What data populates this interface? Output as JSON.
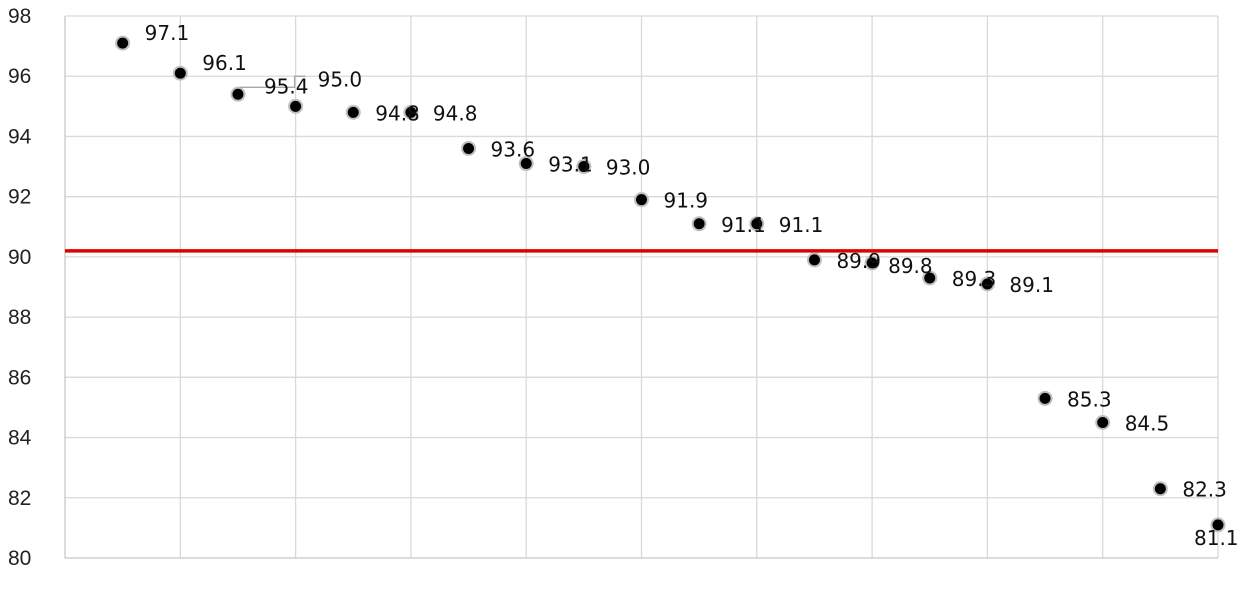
{
  "chart_data": {
    "type": "scatter",
    "title": "",
    "xlabel": "",
    "ylabel": "",
    "ylim": [
      80,
      98
    ],
    "y_ticks": [
      "80",
      "82",
      "84",
      "86",
      "88",
      "90",
      "92",
      "94",
      "96",
      "98"
    ],
    "x_range": [
      0,
      20
    ],
    "x_grid_every": 2,
    "grid": true,
    "legend": "none",
    "marker_color": "#000000",
    "marker_edge_color": "#bfbfbf",
    "reference_line": {
      "y": 90.2,
      "color": "#e00000"
    },
    "points": [
      {
        "x": 1,
        "y": 97.1,
        "label": "97.1"
      },
      {
        "x": 2,
        "y": 96.1,
        "label": "96.1"
      },
      {
        "x": 3,
        "y": 95.4,
        "label": "95.4"
      },
      {
        "x": 4,
        "y": 95.0,
        "label": "95.0"
      },
      {
        "x": 5,
        "y": 94.8,
        "label": "94.8"
      },
      {
        "x": 6,
        "y": 94.8,
        "label": "94.8"
      },
      {
        "x": 7,
        "y": 93.6,
        "label": "93.6"
      },
      {
        "x": 8,
        "y": 93.1,
        "label": "93.1"
      },
      {
        "x": 9,
        "y": 93.0,
        "label": "93.0"
      },
      {
        "x": 10,
        "y": 91.9,
        "label": "91.9"
      },
      {
        "x": 11,
        "y": 91.1,
        "label": "91.1"
      },
      {
        "x": 12,
        "y": 91.1,
        "label": "91.1"
      },
      {
        "x": 13,
        "y": 89.9,
        "label": "89.9"
      },
      {
        "x": 14,
        "y": 89.8,
        "label": "89.8"
      },
      {
        "x": 15,
        "y": 89.3,
        "label": "89.3"
      },
      {
        "x": 16,
        "y": 89.1,
        "label": "89.1"
      },
      {
        "x": 17,
        "y": 85.3,
        "label": "85.3"
      },
      {
        "x": 18,
        "y": 84.5,
        "label": "84.5"
      },
      {
        "x": 19,
        "y": 82.3,
        "label": "82.3"
      },
      {
        "x": 20,
        "y": 81.1,
        "label": "81.1"
      }
    ]
  }
}
